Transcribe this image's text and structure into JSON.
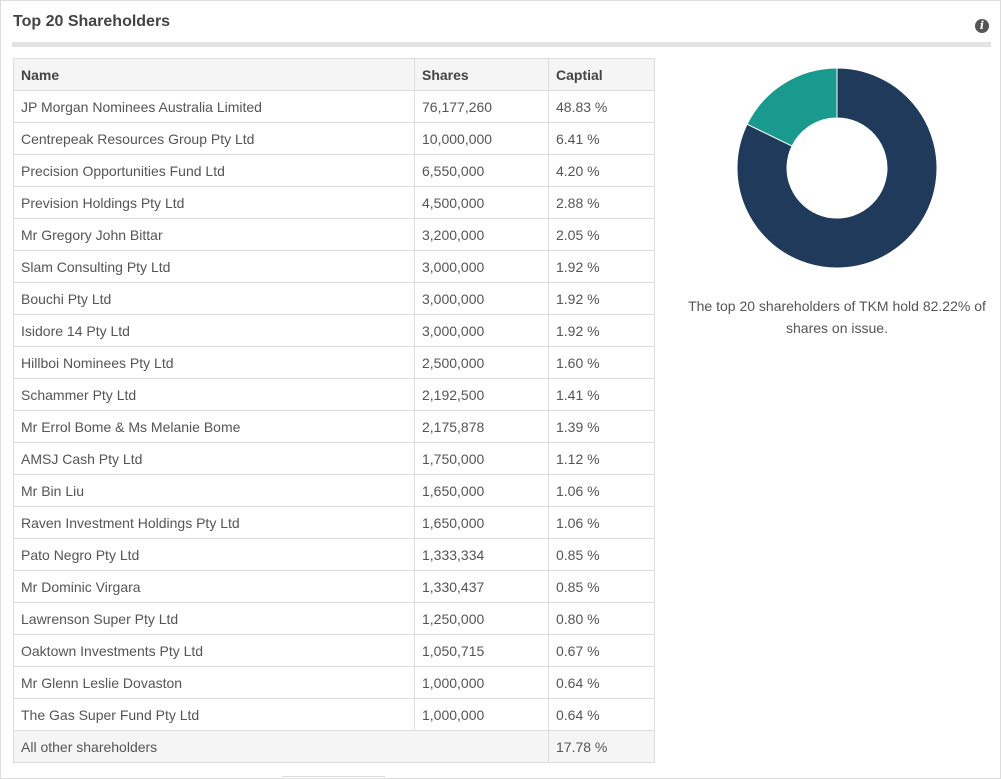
{
  "panel": {
    "title": "Top 20 Shareholders",
    "info_icon": "info-icon"
  },
  "table": {
    "headers": [
      "Name",
      "Shares",
      "Captial"
    ],
    "rows": [
      [
        "JP Morgan Nominees Australia Limited",
        "76,177,260",
        "48.83 %"
      ],
      [
        "Centrepeak Resources Group Pty Ltd",
        "10,000,000",
        "6.41 %"
      ],
      [
        "Precision Opportunities Fund Ltd",
        "6,550,000",
        "4.20 %"
      ],
      [
        "Prevision Holdings Pty Ltd",
        "4,500,000",
        "2.88 %"
      ],
      [
        "Mr Gregory John Bittar",
        "3,200,000",
        "2.05 %"
      ],
      [
        "Slam Consulting Pty Ltd",
        "3,000,000",
        "1.92 %"
      ],
      [
        "Bouchi Pty Ltd",
        "3,000,000",
        "1.92 %"
      ],
      [
        "Isidore 14 Pty Ltd",
        "3,000,000",
        "1.92 %"
      ],
      [
        "Hillboi Nominees Pty Ltd",
        "2,500,000",
        "1.60 %"
      ],
      [
        "Schammer Pty Ltd",
        "2,192,500",
        "1.41 %"
      ],
      [
        "Mr Errol Bome & Ms Melanie Bome",
        "2,175,878",
        "1.39 %"
      ],
      [
        "AMSJ Cash Pty Ltd",
        "1,750,000",
        "1.12 %"
      ],
      [
        "Mr Bin Liu",
        "1,650,000",
        "1.06 %"
      ],
      [
        "Raven Investment Holdings Pty Ltd",
        "1,650,000",
        "1.06 %"
      ],
      [
        "Pato Negro Pty Ltd",
        "1,333,334",
        "0.85 %"
      ],
      [
        "Mr Dominic Virgara",
        "1,330,437",
        "0.85 %"
      ],
      [
        "Lawrenson Super Pty Ltd",
        "1,250,000",
        "0.80 %"
      ],
      [
        "Oaktown Investments Pty Ltd",
        "1,050,715",
        "0.67 %"
      ],
      [
        "Mr Glenn Leslie Dovaston",
        "1,000,000",
        "0.64 %"
      ],
      [
        "The Gas Super Fund Pty Ltd",
        "1,000,000",
        "0.64 %"
      ]
    ],
    "other": {
      "name": "All other shareholders",
      "shares": "",
      "capital": "17.78 %"
    }
  },
  "summary": {
    "caption": "The top 20 shareholders of TKM hold 82.22% of shares on issue."
  },
  "chart_data": {
    "type": "pie",
    "style": "donut",
    "slices": [
      {
        "value": 82.22,
        "color": "#1f3a5a"
      },
      {
        "value": 17.78,
        "color": "#1a9a8e"
      }
    ],
    "start": "top",
    "direction": "clockwise"
  },
  "colors": {
    "accent_dark": "#1f3a5a",
    "accent_teal": "#1a9a8e",
    "rule": "#e3e3e3"
  }
}
